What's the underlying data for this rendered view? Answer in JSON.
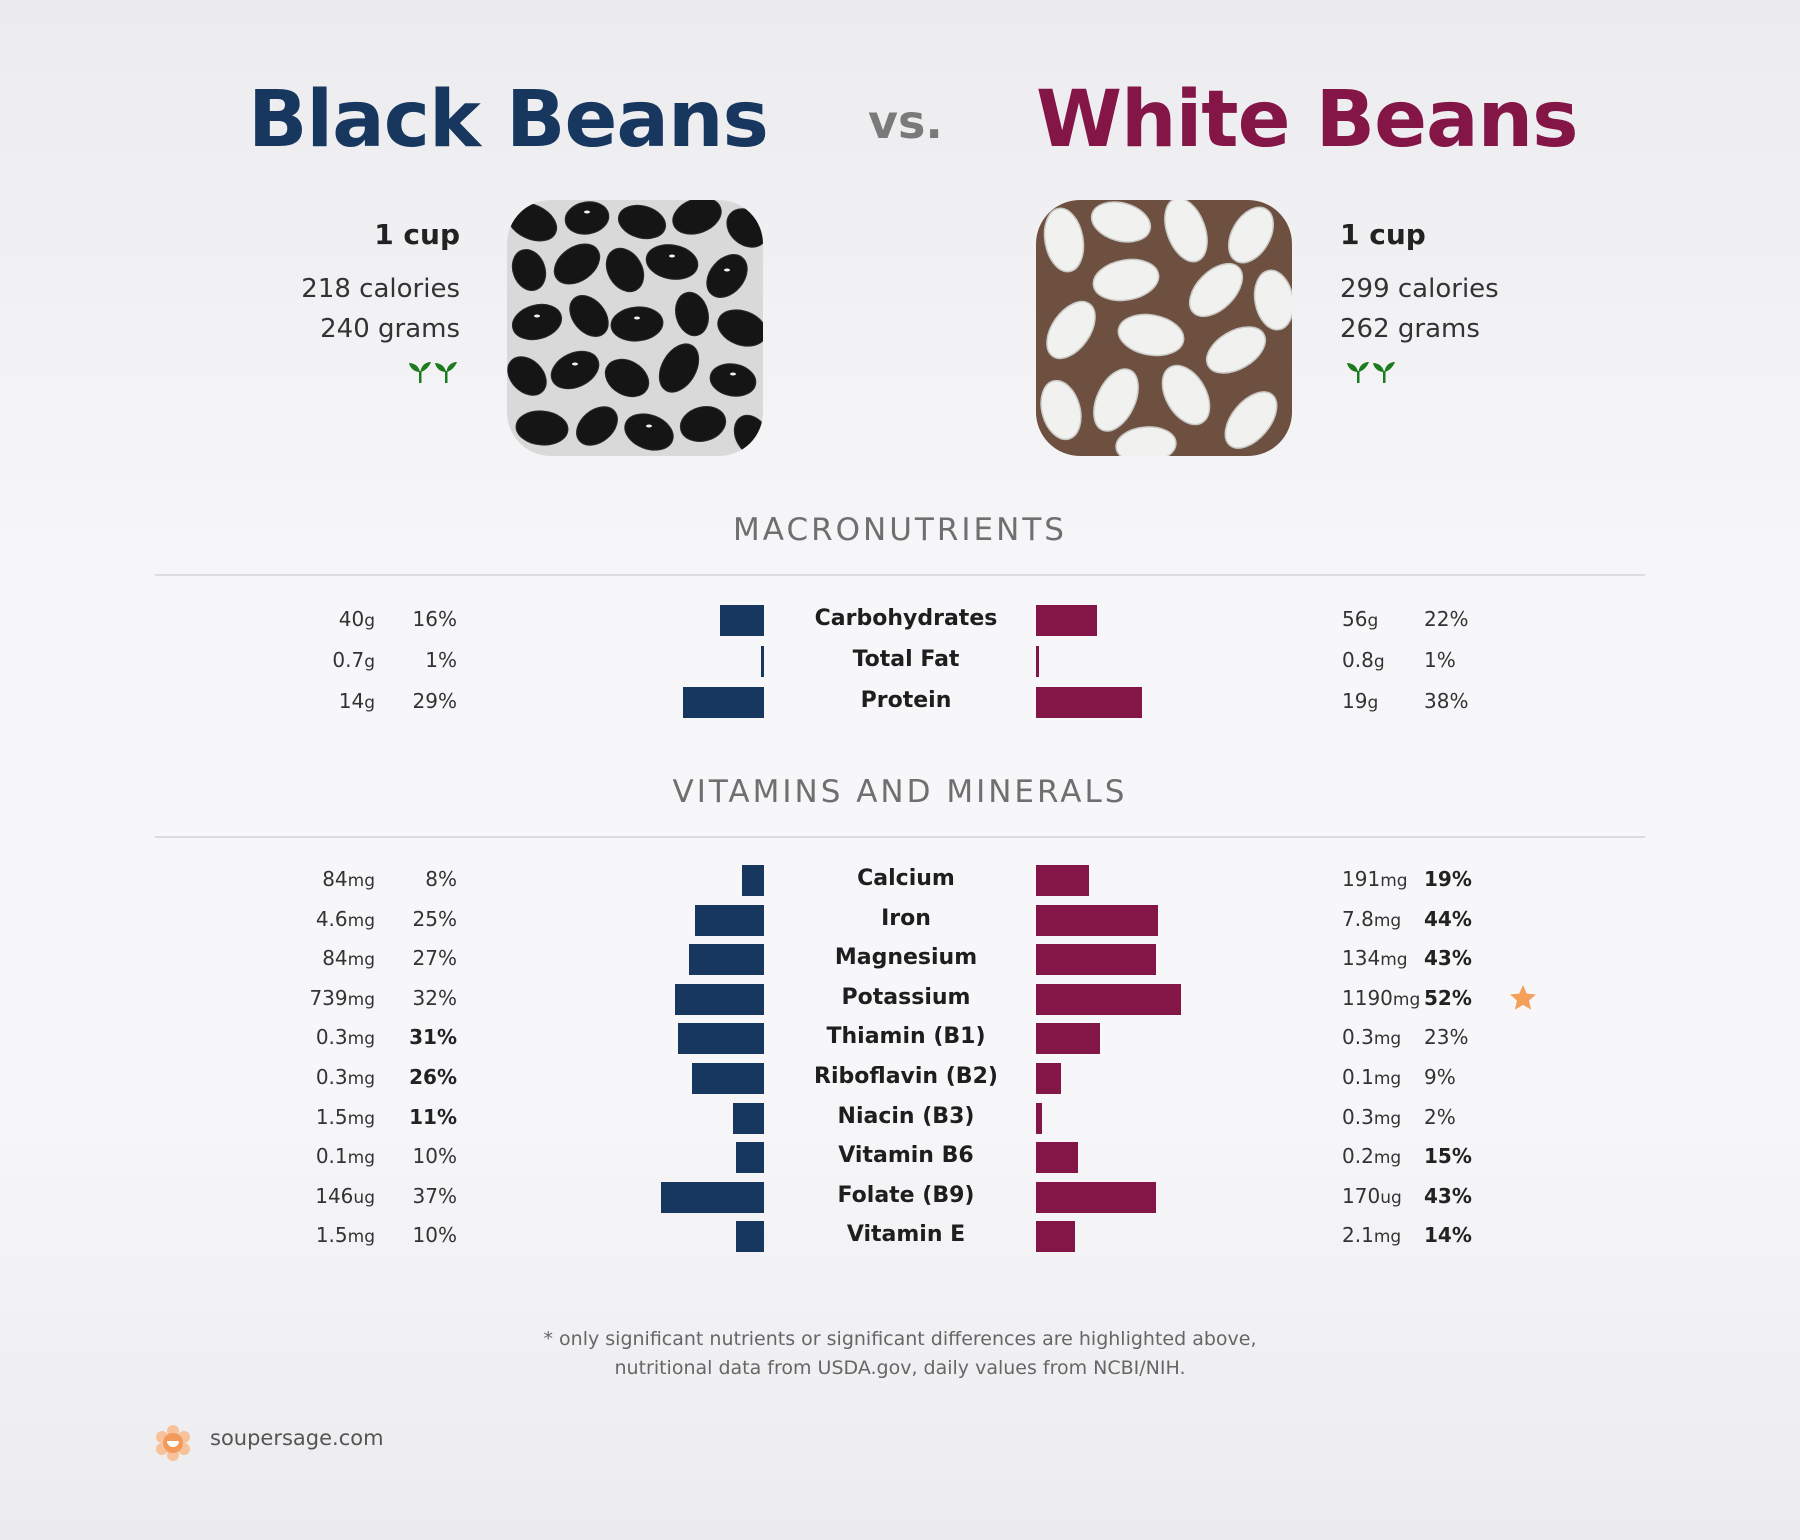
{
  "header": {
    "left_title": "Black Beans",
    "vs": "vs.",
    "right_title": "White Beans"
  },
  "left_food": {
    "serving": "1 cup",
    "calories": "218 calories",
    "grams": "240 grams",
    "icon": "vegan-leaf-icon"
  },
  "right_food": {
    "serving": "1 cup",
    "calories": "299 calories",
    "grams": "262 grams",
    "icon": "vegan-leaf-icon"
  },
  "colors": {
    "left": "#17375e",
    "right": "#841547",
    "star": "#f5a05a",
    "leaf": "#1e7a1e"
  },
  "sections": {
    "macros": "MACRONUTRIENTS",
    "vitamins": "VITAMINS AND MINERALS"
  },
  "chart_data": [
    {
      "type": "bar",
      "title": "MACRONUTRIENTS",
      "categories": [
        "Carbohydrates",
        "Total Fat",
        "Protein"
      ],
      "series": [
        {
          "name": "Black Beans",
          "values": [
            16,
            1,
            29
          ],
          "amounts": [
            "40",
            "0.7",
            "14"
          ],
          "units": [
            "g",
            "g",
            "g"
          ],
          "bold": [
            false,
            false,
            false
          ]
        },
        {
          "name": "White Beans",
          "values": [
            22,
            1,
            38
          ],
          "amounts": [
            "56",
            "0.8",
            "19"
          ],
          "units": [
            "g",
            "g",
            "g"
          ],
          "bold": [
            false,
            false,
            false
          ]
        }
      ]
    },
    {
      "type": "bar",
      "title": "VITAMINS AND MINERALS",
      "categories": [
        "Calcium",
        "Iron",
        "Magnesium",
        "Potassium",
        "Thiamin (B1)",
        "Riboflavin (B2)",
        "Niacin (B3)",
        "Vitamin B6",
        "Folate (B9)",
        "Vitamin E"
      ],
      "series": [
        {
          "name": "Black Beans",
          "values": [
            8,
            25,
            27,
            32,
            31,
            26,
            11,
            10,
            37,
            10
          ],
          "amounts": [
            "84",
            "4.6",
            "84",
            "739",
            "0.3",
            "0.3",
            "1.5",
            "0.1",
            "146",
            "1.5"
          ],
          "units": [
            "mg",
            "mg",
            "mg",
            "mg",
            "mg",
            "mg",
            "mg",
            "mg",
            "ug",
            "mg"
          ],
          "bold": [
            false,
            false,
            false,
            false,
            true,
            true,
            true,
            false,
            false,
            false
          ]
        },
        {
          "name": "White Beans",
          "values": [
            19,
            44,
            43,
            52,
            23,
            9,
            2,
            15,
            43,
            14
          ],
          "amounts": [
            "191",
            "7.8",
            "134",
            "1190",
            "0.3",
            "0.1",
            "0.3",
            "0.2",
            "170",
            "2.1"
          ],
          "units": [
            "mg",
            "mg",
            "mg",
            "mg",
            "mg",
            "mg",
            "mg",
            "mg",
            "ug",
            "mg"
          ],
          "bold": [
            true,
            true,
            true,
            true,
            false,
            false,
            false,
            true,
            true,
            true
          ]
        }
      ],
      "highlight": {
        "category": "Potassium",
        "icon": "star-icon"
      }
    }
  ],
  "footer": {
    "note_line1": "* only significant nutrients or significant differences are highlighted above,",
    "note_line2": "nutritional data from USDA.gov, daily values from NCBI/NIH.",
    "site": "soupersage.com"
  }
}
